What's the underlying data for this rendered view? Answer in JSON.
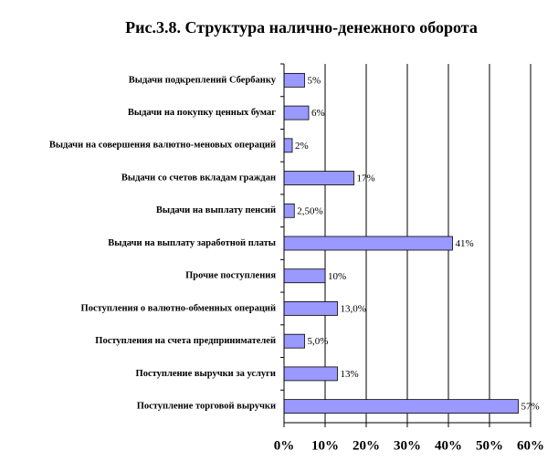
{
  "chart_data": {
    "type": "bar",
    "orientation": "horizontal",
    "title": "Рис.3.8. Структура налично-денежного оборота",
    "categories": [
      "Выдачи подкреплений Сбербанку",
      "Выдачи на покупку ценных бумаг",
      "Выдачи на совершения валютно-меновых операций",
      "Выдачи со счетов вкладам граждан",
      "Выдачи на выплату пенсий",
      "Выдачи на выплату заработной платы",
      "Прочие поступления",
      "Поступления о валютно-обменных операций",
      "Поступления на счета предпринимателей",
      "Поступление выручки за услуги",
      "Поступление торговой выручки"
    ],
    "values": [
      5,
      6,
      2,
      17,
      2.5,
      41,
      10,
      13,
      5,
      13,
      57
    ],
    "value_labels": [
      "5%",
      "6%",
      "2%",
      "17%",
      "2,50%",
      "41%",
      "10%",
      "13,0%",
      "5,0%",
      "13%",
      "57%"
    ],
    "color": "#9999ff",
    "xlim": [
      0,
      60
    ],
    "xticks": [
      {
        "value": 0,
        "label": "0%"
      },
      {
        "value": 10,
        "label": "10%"
      },
      {
        "value": 20,
        "label": "20%"
      },
      {
        "value": 30,
        "label": "30%"
      },
      {
        "value": 40,
        "label": "40%"
      },
      {
        "value": 50,
        "label": "50%"
      },
      {
        "value": 60,
        "label": "60%"
      }
    ],
    "grid": true
  }
}
